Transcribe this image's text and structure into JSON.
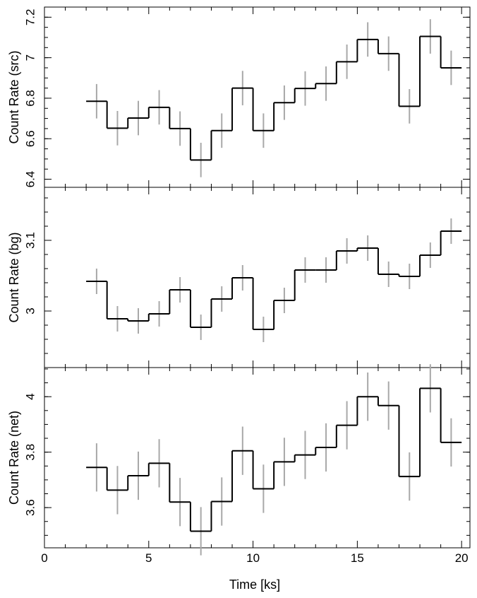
{
  "chart_data": [
    {
      "type": "line",
      "subtype": "step-with-errorbars",
      "ylabel": "Count Rate (src)",
      "ylim": [
        6.36,
        7.25
      ],
      "yticks": {
        "major": [
          6.4,
          6.6,
          6.8,
          7.0,
          7.2
        ],
        "labels": [
          "6.4",
          "6.6",
          "6.8",
          "7",
          "7.2"
        ],
        "minor_step": 0.05
      },
      "x": [
        2.5,
        3.5,
        4.5,
        5.5,
        6.5,
        7.5,
        8.5,
        9.5,
        10.5,
        11.5,
        12.5,
        13.5,
        14.5,
        15.5,
        16.5,
        17.5,
        18.5,
        19.5
      ],
      "bin_width": 1,
      "values": [
        6.785,
        6.652,
        6.702,
        6.755,
        6.65,
        6.495,
        6.64,
        6.85,
        6.64,
        6.778,
        6.848,
        6.872,
        6.98,
        7.09,
        7.02,
        6.76,
        7.105,
        6.95
      ],
      "errors": [
        0.085,
        0.085,
        0.085,
        0.085,
        0.085,
        0.085,
        0.085,
        0.085,
        0.085,
        0.085,
        0.085,
        0.085,
        0.085,
        0.085,
        0.085,
        0.085,
        0.085,
        0.085
      ]
    },
    {
      "type": "line",
      "subtype": "step-with-errorbars",
      "ylabel": "Count Rate (bg)",
      "ylim": [
        2.92,
        3.175
      ],
      "yticks": {
        "major": [
          3.0,
          3.1
        ],
        "labels": [
          "3",
          "3.1"
        ],
        "minor_step": 0.02
      },
      "x": [
        2.5,
        3.5,
        4.5,
        5.5,
        6.5,
        7.5,
        8.5,
        9.5,
        10.5,
        11.5,
        12.5,
        13.5,
        14.5,
        15.5,
        16.5,
        17.5,
        18.5,
        19.5
      ],
      "bin_width": 1,
      "values": [
        3.042,
        2.989,
        2.986,
        2.996,
        3.03,
        2.977,
        3.017,
        3.047,
        2.974,
        3.015,
        3.058,
        3.058,
        3.085,
        3.089,
        3.052,
        3.049,
        3.079,
        3.113
      ],
      "errors": [
        0.018,
        0.018,
        0.018,
        0.018,
        0.018,
        0.018,
        0.018,
        0.018,
        0.018,
        0.018,
        0.018,
        0.018,
        0.018,
        0.018,
        0.018,
        0.018,
        0.018,
        0.018
      ]
    },
    {
      "type": "line",
      "subtype": "step-with-errorbars",
      "ylabel": "Count Rate (net)",
      "xlabel": "Time [ks]",
      "xlim": [
        0,
        20.4
      ],
      "xticks": {
        "major": [
          0,
          5,
          10,
          15,
          20
        ],
        "labels": [
          "0",
          "5",
          "10",
          "15",
          "20"
        ],
        "minor_step": 1
      },
      "ylim": [
        3.455,
        4.105
      ],
      "yticks": {
        "major": [
          3.6,
          3.8,
          4.0
        ],
        "labels": [
          "3.6",
          "3.8",
          "4"
        ],
        "minor_step": 0.05
      },
      "x": [
        2.5,
        3.5,
        4.5,
        5.5,
        6.5,
        7.5,
        8.5,
        9.5,
        10.5,
        11.5,
        12.5,
        13.5,
        14.5,
        15.5,
        16.5,
        17.5,
        18.5,
        19.5
      ],
      "bin_width": 1,
      "values": [
        3.745,
        3.663,
        3.715,
        3.76,
        3.62,
        3.515,
        3.622,
        3.805,
        3.668,
        3.765,
        3.79,
        3.817,
        3.897,
        4.0,
        3.968,
        3.712,
        4.03,
        3.835
      ],
      "errors": [
        0.087,
        0.087,
        0.087,
        0.087,
        0.087,
        0.087,
        0.087,
        0.087,
        0.087,
        0.087,
        0.087,
        0.087,
        0.087,
        0.087,
        0.087,
        0.087,
        0.087,
        0.087
      ]
    }
  ],
  "colors": {
    "step": "#000000",
    "errorbar": "#a8a8a8",
    "frame": "#000000"
  }
}
